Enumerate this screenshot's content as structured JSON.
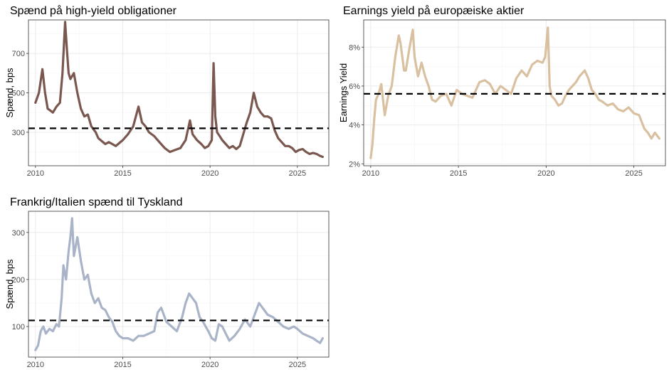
{
  "chart_data": [
    {
      "type": "line",
      "title": "Spænd på high-yield obligationer",
      "xlabel": "",
      "ylabel": "Spænd, bps",
      "xlim": [
        2009.6,
        2026.8
      ],
      "ylim": [
        130,
        870
      ],
      "x_ticks": [
        2010,
        2015,
        2020,
        2025
      ],
      "y_ticks": [
        300,
        500,
        700
      ],
      "y_tick_labels": [
        "300",
        "500",
        "700"
      ],
      "grid": true,
      "reference_line": 320,
      "color": "#7a5850",
      "series": [
        {
          "x": [
            2010.0,
            2010.2,
            2010.4,
            2010.55,
            2010.7,
            2010.85,
            2011.0,
            2011.2,
            2011.4,
            2011.55,
            2011.7,
            2011.8,
            2011.9,
            2012.0,
            2012.2,
            2012.4,
            2012.6,
            2012.8,
            2013.0,
            2013.2,
            2013.45,
            2013.6,
            2013.8,
            2014.0,
            2014.2,
            2014.4,
            2014.6,
            2014.8,
            2015.0,
            2015.3,
            2015.6,
            2015.9,
            2016.1,
            2016.3,
            2016.5,
            2016.8,
            2017.1,
            2017.4,
            2017.7,
            2018.0,
            2018.3,
            2018.6,
            2018.85,
            2019.0,
            2019.25,
            2019.5,
            2019.7,
            2019.9,
            2020.1,
            2020.2,
            2020.3,
            2020.4,
            2020.55,
            2020.7,
            2020.9,
            2021.1,
            2021.3,
            2021.5,
            2021.7,
            2021.9,
            2022.1,
            2022.3,
            2022.5,
            2022.7,
            2022.9,
            2023.1,
            2023.3,
            2023.5,
            2023.7,
            2023.9,
            2024.1,
            2024.3,
            2024.5,
            2024.7,
            2024.9,
            2025.1,
            2025.3,
            2025.5,
            2025.7,
            2025.9,
            2026.1,
            2026.3,
            2026.45
          ],
          "y": [
            450,
            500,
            620,
            500,
            420,
            410,
            400,
            430,
            450,
            600,
            860,
            720,
            600,
            570,
            600,
            500,
            420,
            380,
            390,
            330,
            300,
            270,
            255,
            240,
            250,
            240,
            230,
            245,
            260,
            290,
            330,
            430,
            350,
            330,
            300,
            280,
            250,
            220,
            200,
            210,
            220,
            260,
            360,
            290,
            260,
            240,
            220,
            230,
            260,
            650,
            380,
            300,
            280,
            260,
            240,
            220,
            230,
            215,
            230,
            290,
            350,
            400,
            500,
            430,
            400,
            380,
            380,
            370,
            310,
            270,
            250,
            230,
            230,
            220,
            200,
            210,
            215,
            200,
            190,
            195,
            190,
            180,
            175
          ]
        }
      ]
    },
    {
      "type": "line",
      "title": "Earnings yield på europæiske aktier",
      "xlabel": "",
      "ylabel": "Earnings Yield",
      "xlim": [
        2009.6,
        2026.8
      ],
      "ylim": [
        1.9,
        9.4
      ],
      "x_ticks": [
        2010,
        2015,
        2020,
        2025
      ],
      "y_ticks": [
        2,
        4,
        6,
        8
      ],
      "y_tick_labels": [
        "2%",
        "4%",
        "6%",
        "8%"
      ],
      "grid": true,
      "reference_line": 5.6,
      "color": "#d9c0a0",
      "series": [
        {
          "x": [
            2010.0,
            2010.1,
            2010.2,
            2010.3,
            2010.45,
            2010.6,
            2010.8,
            2011.0,
            2011.2,
            2011.4,
            2011.6,
            2011.7,
            2011.9,
            2012.0,
            2012.2,
            2012.4,
            2012.5,
            2012.7,
            2012.9,
            2013.1,
            2013.3,
            2013.5,
            2013.7,
            2014.0,
            2014.3,
            2014.6,
            2014.9,
            2015.2,
            2015.5,
            2015.8,
            2016.0,
            2016.2,
            2016.5,
            2016.8,
            2017.1,
            2017.4,
            2017.7,
            2018.0,
            2018.3,
            2018.6,
            2018.9,
            2019.2,
            2019.5,
            2019.8,
            2019.95,
            2020.1,
            2020.2,
            2020.3,
            2020.5,
            2020.7,
            2020.9,
            2021.1,
            2021.3,
            2021.5,
            2021.7,
            2021.9,
            2022.2,
            2022.4,
            2022.6,
            2022.8,
            2023.0,
            2023.2,
            2023.5,
            2023.8,
            2024.1,
            2024.4,
            2024.7,
            2025.0,
            2025.3,
            2025.6,
            2025.8,
            2026.0,
            2026.2,
            2026.45
          ],
          "y": [
            2.3,
            3.0,
            4.3,
            5.3,
            5.6,
            6.1,
            4.5,
            5.5,
            6.0,
            7.5,
            8.6,
            8.2,
            6.8,
            6.8,
            7.9,
            8.9,
            7.5,
            6.5,
            7.2,
            6.5,
            6.0,
            5.3,
            5.2,
            5.5,
            5.6,
            5.0,
            5.8,
            5.6,
            5.5,
            5.4,
            5.8,
            6.2,
            6.3,
            6.1,
            5.6,
            6.0,
            5.8,
            5.6,
            6.4,
            6.8,
            6.5,
            7.1,
            7.3,
            7.2,
            7.5,
            9.0,
            6.0,
            5.5,
            5.3,
            5.0,
            5.1,
            5.5,
            5.8,
            6.0,
            6.2,
            6.5,
            6.8,
            6.4,
            5.8,
            5.6,
            5.3,
            5.2,
            5.0,
            5.1,
            4.8,
            4.7,
            4.9,
            4.6,
            4.5,
            3.8,
            3.6,
            3.3,
            3.6,
            3.3
          ]
        }
      ]
    },
    {
      "type": "line",
      "title": "Frankrig/Italien spænd til Tyskland",
      "xlabel": "",
      "ylabel": "Spænd, bps",
      "xlim": [
        2009.6,
        2026.8
      ],
      "ylim": [
        35,
        345
      ],
      "x_ticks": [
        2010,
        2015,
        2020,
        2025
      ],
      "y_ticks": [
        100,
        200,
        300
      ],
      "y_tick_labels": [
        "100",
        "200",
        "300"
      ],
      "grid": true,
      "reference_line": 113,
      "color": "#aab4c8",
      "series": [
        {
          "x": [
            2010.0,
            2010.15,
            2010.3,
            2010.45,
            2010.6,
            2010.8,
            2011.0,
            2011.2,
            2011.35,
            2011.5,
            2011.6,
            2011.75,
            2011.9,
            2012.0,
            2012.1,
            2012.2,
            2012.4,
            2012.6,
            2012.8,
            2013.0,
            2013.2,
            2013.4,
            2013.6,
            2013.8,
            2014.0,
            2014.2,
            2014.4,
            2014.6,
            2014.8,
            2015.0,
            2015.3,
            2015.6,
            2015.9,
            2016.2,
            2016.5,
            2016.8,
            2017.0,
            2017.2,
            2017.5,
            2017.8,
            2018.1,
            2018.4,
            2018.6,
            2018.8,
            2019.0,
            2019.2,
            2019.4,
            2019.6,
            2019.9,
            2020.1,
            2020.3,
            2020.5,
            2020.7,
            2020.9,
            2021.1,
            2021.4,
            2021.7,
            2022.0,
            2022.3,
            2022.6,
            2022.8,
            2023.0,
            2023.3,
            2023.6,
            2023.9,
            2024.2,
            2024.5,
            2024.8,
            2025.0,
            2025.3,
            2025.6,
            2025.9,
            2026.1,
            2026.3,
            2026.45
          ],
          "y": [
            50,
            60,
            90,
            100,
            85,
            95,
            90,
            105,
            100,
            160,
            230,
            200,
            260,
            290,
            330,
            250,
            290,
            240,
            200,
            210,
            170,
            150,
            160,
            140,
            135,
            120,
            110,
            90,
            80,
            75,
            75,
            70,
            80,
            80,
            85,
            90,
            130,
            140,
            110,
            100,
            90,
            120,
            150,
            170,
            160,
            150,
            120,
            110,
            90,
            75,
            70,
            105,
            100,
            85,
            70,
            80,
            95,
            115,
            100,
            130,
            150,
            140,
            125,
            120,
            110,
            100,
            95,
            100,
            95,
            85,
            80,
            75,
            70,
            65,
            75
          ]
        }
      ]
    }
  ]
}
